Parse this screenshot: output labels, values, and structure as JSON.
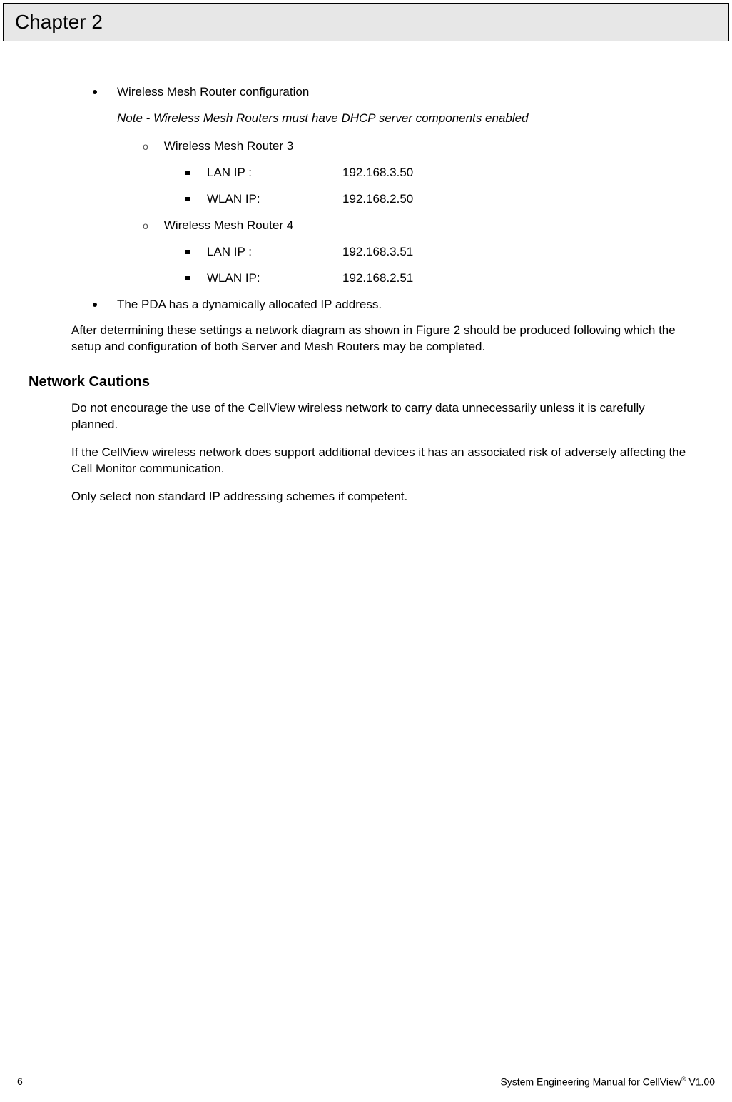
{
  "header": {
    "chapter_title": "Chapter 2"
  },
  "bullets": {
    "b1": "Wireless Mesh Router configuration",
    "note": "Note -  Wireless Mesh Routers must have DHCP server components enabled",
    "router3": {
      "title": "Wireless Mesh Router 3",
      "lan_label": "LAN IP :",
      "lan_ip": "192.168.3.50",
      "wlan_label": "WLAN IP:",
      "wlan_ip": "192.168.2.50"
    },
    "router4": {
      "title": "Wireless Mesh Router 4",
      "lan_label": "LAN IP :",
      "lan_ip": "192.168.3.51",
      "wlan_label": "WLAN IP:",
      "wlan_ip": "192.168.2.51"
    },
    "b2": "The PDA has a dynamically allocated IP address."
  },
  "paragraphs": {
    "p1": "After determining these settings a network diagram as shown in Figure 2 should be produced following which the setup and configuration of both Server and Mesh Routers may be completed.",
    "heading": "Network Cautions",
    "p2": "Do not encourage the use of the CellView wireless network to carry data unnecessarily unless it is carefully planned.",
    "p3": "If the CellView wireless network does support additional devices it has an associated risk of adversely affecting the Cell Monitor communication.",
    "p4": "Only select non standard IP addressing schemes if competent."
  },
  "footer": {
    "page_number": "6",
    "right_prefix": "System Engineering Manual for CellView",
    "right_suffix": " V1.00",
    "reg": "®"
  },
  "sub_bullet_glyph": "o"
}
